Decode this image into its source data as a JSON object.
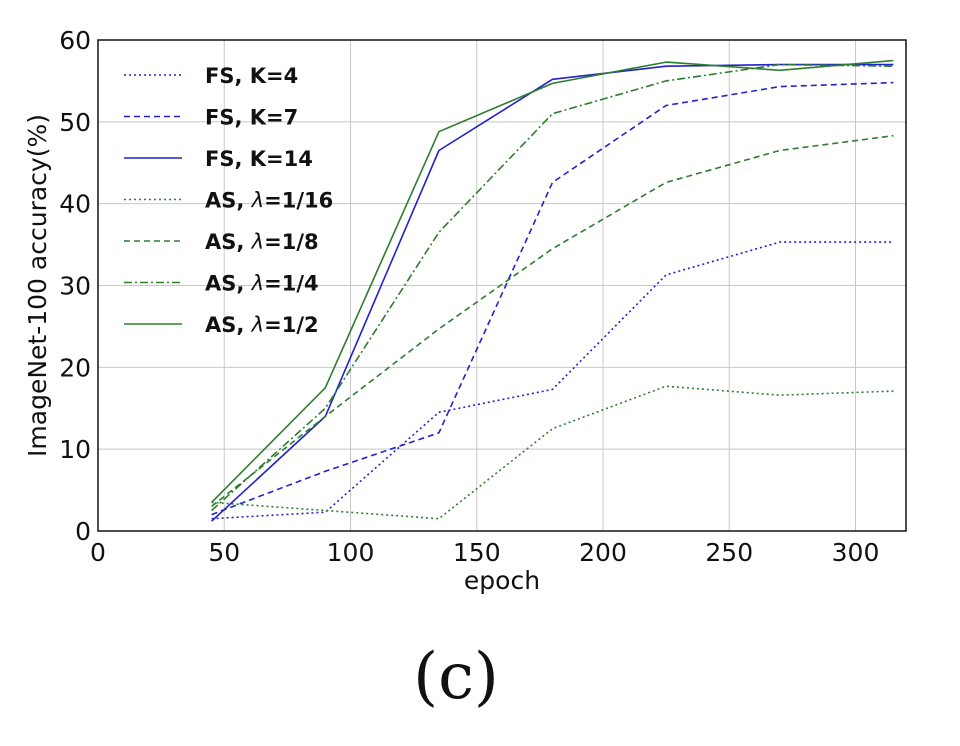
{
  "chart_data": {
    "type": "line",
    "xlabel": "epoch",
    "ylabel": "ImageNet-100 accuracy(%)",
    "xlim": [
      0,
      320
    ],
    "ylim": [
      0,
      60
    ],
    "xticks": [
      0,
      50,
      100,
      150,
      200,
      250,
      300
    ],
    "yticks": [
      0,
      10,
      20,
      30,
      40,
      50,
      60
    ],
    "grid": true,
    "legend_position": "top-left",
    "x": [
      45,
      90,
      135,
      180,
      225,
      270,
      315
    ],
    "series": [
      {
        "name": "FS, K=4",
        "label_prefix": "FS, K=4",
        "label_suffix": "",
        "greek": false,
        "color": "#2222cc",
        "dash": "dotted",
        "values": [
          1.5,
          2.3,
          14.5,
          17.3,
          31.3,
          35.3,
          35.3
        ]
      },
      {
        "name": "FS, K=7",
        "label_prefix": "FS, K=7",
        "label_suffix": "",
        "greek": false,
        "color": "#2222cc",
        "dash": "dashed",
        "values": [
          2.0,
          7.3,
          12.0,
          42.6,
          52.0,
          54.3,
          54.8
        ]
      },
      {
        "name": "FS, K=14",
        "label_prefix": "FS, K=14",
        "label_suffix": "",
        "greek": false,
        "color": "#2222cc",
        "dash": "solid",
        "values": [
          1.2,
          14.0,
          46.5,
          55.2,
          56.8,
          57.0,
          57.0
        ]
      },
      {
        "name": "AS, λ=1/16",
        "label_prefix": "AS, ",
        "label_suffix": "=1/16",
        "greek": true,
        "color": "#2e7d2e",
        "dash": "dotted",
        "values": [
          3.5,
          2.5,
          1.5,
          12.5,
          17.7,
          16.6,
          17.1
        ]
      },
      {
        "name": "AS, λ=1/8",
        "label_prefix": "AS, ",
        "label_suffix": "=1/8",
        "greek": true,
        "color": "#2e7d2e",
        "dash": "dashed",
        "values": [
          3.0,
          14.0,
          24.7,
          34.5,
          42.6,
          46.5,
          48.3
        ]
      },
      {
        "name": "AS, λ=1/4",
        "label_prefix": "AS, ",
        "label_suffix": "=1/4",
        "greek": true,
        "color": "#2e7d2e",
        "dash": "dashdot",
        "values": [
          2.5,
          15.0,
          36.5,
          51.0,
          55.0,
          57.0,
          56.8
        ]
      },
      {
        "name": "AS, λ=1/2",
        "label_prefix": "AS, ",
        "label_suffix": "=1/2",
        "greek": true,
        "color": "#2e7d2e",
        "dash": "solid",
        "values": [
          3.5,
          17.5,
          48.8,
          54.7,
          57.3,
          56.3,
          57.5
        ]
      }
    ]
  },
  "greek_symbol": "λ",
  "caption": "(c)"
}
